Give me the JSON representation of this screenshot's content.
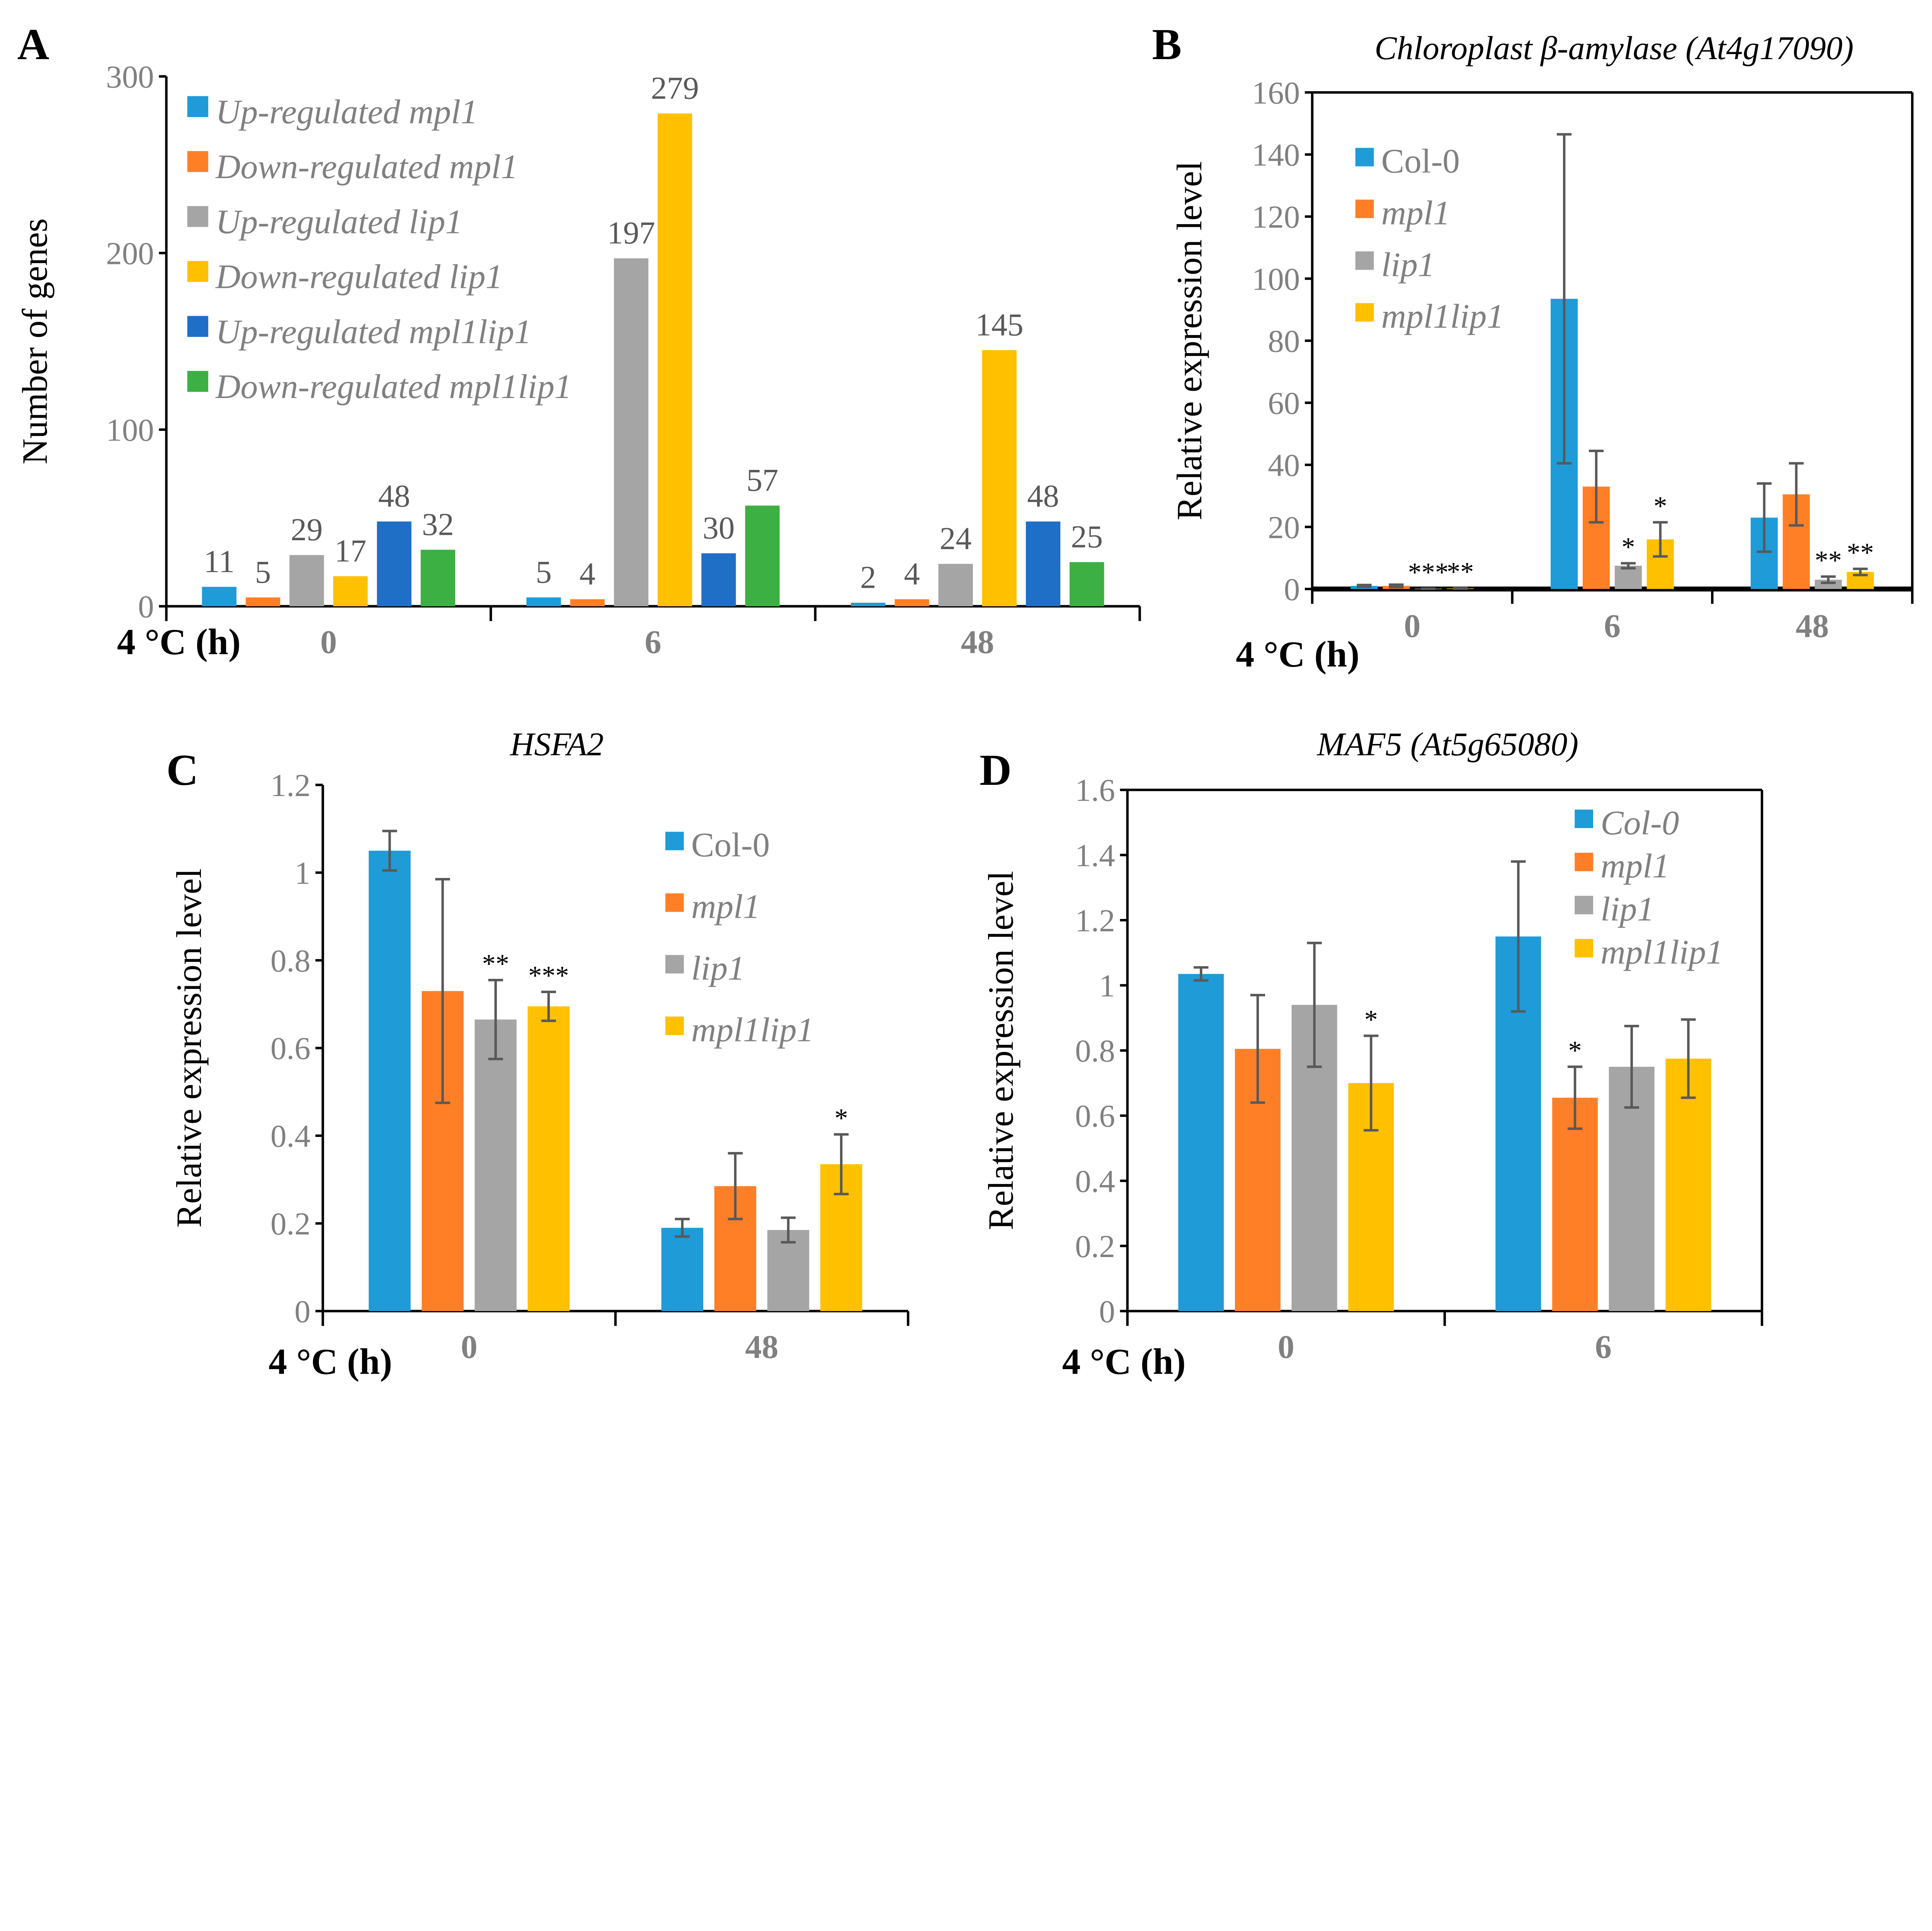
{
  "x_axis_label": "4 °C (h)",
  "colors": {
    "blue": "#1F9BD7",
    "orange": "#FF7F27",
    "gray": "#A5A5A5",
    "yellow": "#FFC000",
    "darkblue": "#1F6FC6",
    "green": "#3CB043",
    "error": "#595959"
  },
  "chart_data": [
    {
      "panel": "A",
      "type": "bar",
      "title": "",
      "ylabel": "Number of genes",
      "ylim": [
        0,
        300
      ],
      "yticks": [
        0,
        100,
        200,
        300
      ],
      "categories": [
        "0",
        "6",
        "48"
      ],
      "series": [
        {
          "name": "Up-regulated mpl1",
          "color": "#1F9BD7",
          "values": [
            11,
            5,
            2
          ]
        },
        {
          "name": "Down-regulated mpl1",
          "color": "#FF7F27",
          "values": [
            5,
            4,
            4
          ]
        },
        {
          "name": "Up-regulated lip1",
          "color": "#A5A5A5",
          "values": [
            29,
            197,
            24
          ]
        },
        {
          "name": "Down-regulated lip1",
          "color": "#FFC000",
          "values": [
            17,
            279,
            145
          ]
        },
        {
          "name": "Up-regulated mpl1lip1",
          "color": "#1F6FC6",
          "values": [
            48,
            30,
            48
          ]
        },
        {
          "name": "Down-regulated mpl1lip1",
          "color": "#3CB043",
          "values": [
            32,
            57,
            25
          ]
        }
      ],
      "data_labels": true,
      "legend": "top-left",
      "legend_italic": [
        true,
        true,
        true,
        true,
        true,
        true
      ]
    },
    {
      "panel": "B",
      "type": "bar",
      "title": "Chloroplast β-amylase (At4g17090)",
      "ylabel": "Relative expression level",
      "ylim": [
        0,
        160
      ],
      "yticks": [
        0,
        20,
        40,
        60,
        80,
        100,
        120,
        140,
        160
      ],
      "categories": [
        "0",
        "6",
        "48"
      ],
      "series": [
        {
          "name": "Col-0",
          "color": "#1F9BD7",
          "values": [
            1,
            93.5,
            23
          ],
          "errors": [
            0.3,
            53,
            11
          ],
          "sig": [
            "",
            "",
            ""
          ]
        },
        {
          "name": "mpl1",
          "color": "#FF7F27",
          "values": [
            1,
            33,
            30.5
          ],
          "errors": [
            0.4,
            11.5,
            10
          ],
          "sig": [
            "",
            "",
            ""
          ]
        },
        {
          "name": "lip1",
          "color": "#A5A5A5",
          "values": [
            0.1,
            7.5,
            3
          ],
          "errors": [
            0.05,
            0.8,
            1
          ],
          "sig": [
            "***",
            "*",
            "**"
          ]
        },
        {
          "name": "mpl1lip1",
          "color": "#FFC000",
          "values": [
            0.2,
            16,
            5.5
          ],
          "errors": [
            0.1,
            5.5,
            1
          ],
          "sig": [
            "**",
            "*",
            "**"
          ]
        }
      ],
      "legend": "top-left",
      "legend_italic": [
        false,
        true,
        true,
        true
      ]
    },
    {
      "panel": "C",
      "type": "bar",
      "title": "HSFA2",
      "ylabel": "Relative expression level",
      "ylim": [
        0,
        1.2
      ],
      "yticks": [
        0,
        0.2,
        0.4,
        0.6,
        0.8,
        1,
        1.2
      ],
      "categories": [
        "0",
        "48"
      ],
      "series": [
        {
          "name": "Col-0",
          "color": "#1F9BD7",
          "values": [
            1.05,
            0.19
          ],
          "errors": [
            0.045,
            0.02
          ],
          "sig": [
            "",
            ""
          ]
        },
        {
          "name": "mpl1",
          "color": "#FF7F27",
          "values": [
            0.73,
            0.285
          ],
          "errors": [
            0.255,
            0.075
          ],
          "sig": [
            "",
            ""
          ]
        },
        {
          "name": "lip1",
          "color": "#A5A5A5",
          "values": [
            0.665,
            0.185
          ],
          "errors": [
            0.09,
            0.028
          ],
          "sig": [
            "**",
            ""
          ]
        },
        {
          "name": "mpl1lip1",
          "color": "#FFC000",
          "values": [
            0.695,
            0.335
          ],
          "errors": [
            0.033,
            0.068
          ],
          "sig": [
            "***",
            "*"
          ]
        }
      ],
      "legend": "top-right",
      "legend_italic": [
        false,
        true,
        true,
        true
      ]
    },
    {
      "panel": "D",
      "type": "bar",
      "title": "MAF5 (At5g65080)",
      "ylabel": "Relative expression level",
      "ylim": [
        0,
        1.6
      ],
      "yticks": [
        0,
        0.2,
        0.4,
        0.6,
        0.8,
        1,
        1.2,
        1.4,
        1.6
      ],
      "categories": [
        "0",
        "6"
      ],
      "series": [
        {
          "name": "Col-0",
          "color": "#1F9BD7",
          "values": [
            1.035,
            1.15
          ],
          "errors": [
            0.02,
            0.23
          ],
          "sig": [
            "",
            ""
          ]
        },
        {
          "name": "mpl1",
          "color": "#FF7F27",
          "values": [
            0.805,
            0.655
          ],
          "errors": [
            0.165,
            0.095
          ],
          "sig": [
            "",
            "*"
          ]
        },
        {
          "name": "lip1",
          "color": "#A5A5A5",
          "values": [
            0.94,
            0.75
          ],
          "errors": [
            0.19,
            0.125
          ],
          "sig": [
            "",
            ""
          ]
        },
        {
          "name": "mpl1lip1",
          "color": "#FFC000",
          "values": [
            0.7,
            0.775
          ],
          "errors": [
            0.145,
            0.12
          ],
          "sig": [
            "*",
            ""
          ]
        }
      ],
      "legend": "top-right",
      "legend_italic": [
        true,
        true,
        true,
        true
      ]
    }
  ]
}
